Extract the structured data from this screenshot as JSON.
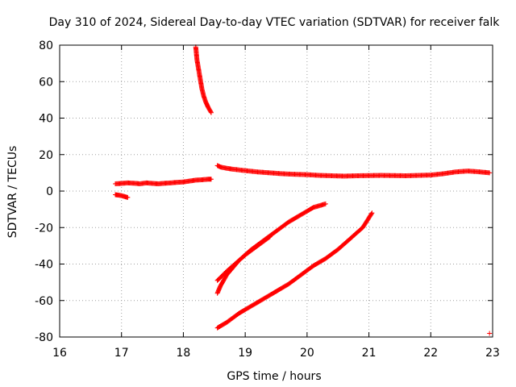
{
  "chart_data": {
    "type": "scatter",
    "title": "Day 310 of 2024, Sidereal Day-to-day VTEC variation (SDTVAR) for receiver falk",
    "xlabel": "GPS time / hours",
    "ylabel": "SDTVAR / TECUs",
    "xlim": [
      16,
      23
    ],
    "ylim": [
      -80,
      80
    ],
    "xticks": [
      "16",
      "17",
      "18",
      "19",
      "20",
      "21",
      "22",
      "23"
    ],
    "yticks": [
      "-80",
      "-60",
      "-40",
      "-20",
      "0",
      "20",
      "40",
      "60",
      "80"
    ],
    "grid": true,
    "legend": "none",
    "marker": "plus",
    "color": "#ff0000",
    "series": [
      {
        "x": [
          16.9,
          17.0,
          17.1,
          17.2,
          17.3,
          17.4,
          17.5,
          17.6,
          17.7,
          17.8,
          17.9,
          18.0,
          18.1,
          18.2,
          18.3,
          18.4,
          18.45
        ],
        "y": [
          4.0,
          4.2,
          4.5,
          4.3,
          4.0,
          4.5,
          4.2,
          4.0,
          4.3,
          4.5,
          4.8,
          5.0,
          5.5,
          6.0,
          6.2,
          6.5,
          6.5
        ]
      },
      {
        "x": [
          16.9,
          16.95,
          17.0,
          17.05,
          17.1
        ],
        "y": [
          -2.0,
          -2.2,
          -2.5,
          -3.0,
          -3.5
        ]
      },
      {
        "x": [
          18.2,
          18.22,
          18.25,
          18.28,
          18.3,
          18.33,
          18.36,
          18.4,
          18.45
        ],
        "y": [
          79,
          72,
          66,
          60,
          56,
          52,
          49,
          46,
          43
        ]
      },
      {
        "x": [
          18.55,
          18.6,
          18.7,
          18.8,
          19.0,
          19.2,
          19.4,
          19.6,
          19.8,
          20.0,
          20.2,
          20.4,
          20.6,
          20.8,
          21.0,
          21.2,
          21.4,
          21.6,
          21.8,
          22.0,
          22.2,
          22.4,
          22.6,
          22.8,
          22.95
        ],
        "y": [
          14,
          13.2,
          12.5,
          12.0,
          11.2,
          10.5,
          10.0,
          9.5,
          9.2,
          9.0,
          8.6,
          8.4,
          8.2,
          8.4,
          8.5,
          8.6,
          8.5,
          8.4,
          8.6,
          8.8,
          9.5,
          10.5,
          11,
          10.5,
          10.0
        ]
      },
      {
        "x": [
          18.55,
          18.7,
          18.9,
          19.1,
          19.3,
          19.5,
          19.7,
          19.9,
          20.1,
          20.3
        ],
        "y": [
          -49,
          -44,
          -38,
          -32,
          -27,
          -22,
          -17,
          -13,
          -9,
          -7
        ]
      },
      {
        "x": [
          18.55,
          18.6,
          18.7,
          18.8,
          18.9,
          19.0,
          19.2,
          19.4
        ],
        "y": [
          -56,
          -52,
          -46,
          -42,
          -38,
          -35,
          -30,
          -25
        ]
      },
      {
        "x": [
          18.55,
          18.7,
          18.9,
          19.1,
          19.3,
          19.5,
          19.7,
          19.9,
          20.1,
          20.3,
          20.5,
          20.7,
          20.9,
          21.05
        ],
        "y": [
          -75,
          -72,
          -67,
          -63,
          -59,
          -55,
          -51,
          -46,
          -41,
          -37,
          -32,
          -26,
          -20,
          -12
        ]
      },
      {
        "x": [
          22.95
        ],
        "y": [
          -78
        ]
      }
    ]
  }
}
